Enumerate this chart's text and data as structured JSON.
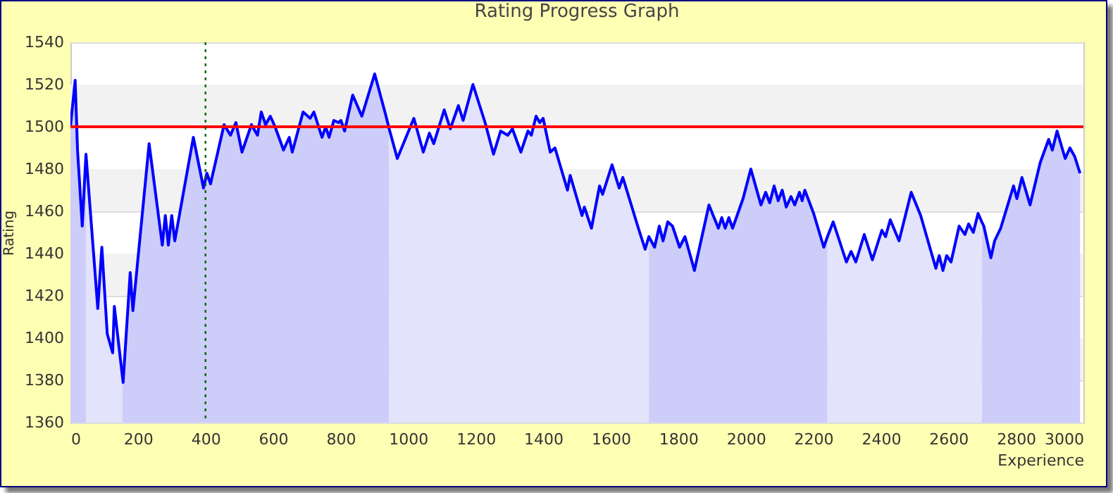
{
  "chart_data": {
    "type": "area",
    "title": "Rating Progress Graph",
    "xlabel": "Experience",
    "ylabel": "Rating",
    "xlim": [
      0,
      3000
    ],
    "xticks": [
      0,
      200,
      400,
      600,
      800,
      1000,
      1200,
      1400,
      1600,
      1800,
      2000,
      2200,
      2400,
      2600,
      2800,
      3000
    ],
    "ylim": [
      1360,
      1540
    ],
    "yticks": [
      1360,
      1380,
      1400,
      1420,
      1440,
      1460,
      1480,
      1500,
      1520,
      1540
    ],
    "grid": "y",
    "marker": "none",
    "x": [
      0,
      7,
      14,
      21,
      35,
      46,
      81,
      93,
      109,
      125,
      130,
      153,
      156,
      177,
      185,
      233,
      272,
      281,
      290,
      300,
      309,
      364,
      394,
      404,
      415,
      455,
      474,
      490,
      508,
      536,
      554,
      565,
      578,
      592,
      606,
      631,
      648,
      657,
      689,
      710,
      721,
      745,
      756,
      766,
      780,
      794,
      801,
      812,
      836,
      863,
      901,
      933,
      944,
      968,
      1017,
      1045,
      1063,
      1076,
      1107,
      1125,
      1149,
      1163,
      1192,
      1228,
      1253,
      1274,
      1295,
      1309,
      1334,
      1355,
      1365,
      1379,
      1390,
      1400,
      1421,
      1435,
      1472,
      1480,
      1515,
      1522,
      1543,
      1567,
      1576,
      1604,
      1625,
      1636,
      1682,
      1702,
      1713,
      1730,
      1744,
      1755,
      1769,
      1783,
      1804,
      1820,
      1848,
      1891,
      1919,
      1929,
      1939,
      1950,
      1961,
      1992,
      2015,
      2045,
      2059,
      2071,
      2084,
      2096,
      2108,
      2120,
      2134,
      2145,
      2159,
      2167,
      2175,
      2201,
      2231,
      2242,
      2259,
      2298,
      2312,
      2326,
      2351,
      2375,
      2403,
      2414,
      2428,
      2454,
      2490,
      2518,
      2563,
      2573,
      2584,
      2595,
      2608,
      2632,
      2649,
      2660,
      2674,
      2688,
      2699,
      2705,
      2726,
      2737,
      2755,
      2793,
      2803,
      2818,
      2842,
      2872,
      2897,
      2908,
      2922,
      2946,
      2960,
      2974,
      2990
    ],
    "series": [
      {
        "type": "area",
        "color": "#cdcdf9",
        "values": [
          1500,
          1511,
          1522,
          1489,
          1453,
          1487,
          null,
          null,
          null,
          null,
          null,
          1383,
          1379,
          1431,
          1413,
          1492,
          1444,
          1458,
          1444,
          1458,
          1446,
          1495,
          1471,
          1478,
          1473,
          1501,
          1496,
          1502,
          1488,
          1501,
          1496,
          1507,
          1501,
          1505,
          1500,
          1489,
          1495,
          1488,
          1507,
          1504,
          1507,
          1495,
          1500,
          1495,
          1503,
          1502,
          1503,
          1498,
          1515,
          1505,
          1525,
          1506,
          1499,
          null,
          null,
          null,
          null,
          null,
          null,
          null,
          null,
          null,
          null,
          null,
          null,
          null,
          null,
          null,
          null,
          null,
          null,
          null,
          null,
          null,
          null,
          null,
          null,
          null,
          null,
          null,
          null,
          null,
          null,
          null,
          null,
          null,
          null,
          null,
          1448,
          1443,
          1453,
          1446,
          1455,
          1453,
          1443,
          1448,
          1432,
          1463,
          1452,
          1457,
          1452,
          1457,
          1452,
          1466,
          1480,
          1463,
          1469,
          1464,
          1472,
          1465,
          1470,
          1462,
          1467,
          1463,
          1469,
          1465,
          1470,
          1459,
          1443,
          1448,
          null,
          null,
          null,
          null,
          null,
          null,
          null,
          null,
          null,
          null,
          null,
          null,
          null,
          null,
          null,
          null,
          null,
          null,
          null,
          null,
          null,
          null,
          1455,
          1453,
          1438,
          1446,
          1452,
          1472,
          1466,
          1476,
          1463,
          1483,
          1494,
          1489,
          1498,
          1485,
          1490,
          1486,
          1478
        ]
      },
      {
        "type": "area",
        "color": "#e3e3fb",
        "values": [
          null,
          null,
          null,
          null,
          null,
          1487,
          1414,
          1443,
          1402,
          1393,
          1415,
          1383,
          null,
          null,
          null,
          null,
          null,
          null,
          null,
          null,
          null,
          null,
          null,
          null,
          null,
          null,
          null,
          null,
          null,
          null,
          null,
          null,
          null,
          null,
          null,
          null,
          null,
          null,
          null,
          null,
          null,
          null,
          null,
          null,
          null,
          null,
          null,
          null,
          null,
          null,
          null,
          null,
          1499,
          1485,
          1504,
          1488,
          1497,
          1492,
          1508,
          1499,
          1510,
          1503,
          1520,
          1502,
          1487,
          1498,
          1496,
          1499,
          1488,
          1498,
          1496,
          1505,
          1502,
          1504,
          1488,
          1490,
          1470,
          1477,
          1458,
          1462,
          1452,
          1472,
          1468,
          1482,
          1471,
          1476,
          1452,
          1442,
          1448,
          null,
          null,
          null,
          null,
          null,
          null,
          null,
          null,
          null,
          null,
          null,
          null,
          null,
          null,
          null,
          null,
          null,
          null,
          null,
          null,
          null,
          null,
          null,
          null,
          null,
          null,
          null,
          null,
          null,
          null,
          1448,
          1455,
          1436,
          1441,
          1436,
          1449,
          1437,
          1451,
          1448,
          1456,
          1446,
          1469,
          1458,
          1433,
          1439,
          1432,
          1439,
          1436,
          1453,
          1449,
          1454,
          1450,
          1459,
          1455,
          null,
          null,
          null,
          null,
          null,
          null,
          null,
          null,
          null,
          null,
          null,
          null,
          null,
          null,
          null,
          null
        ]
      },
      {
        "type": "line",
        "color": "#0000ff",
        "values": [
          1500,
          1511,
          1522,
          1489,
          1453,
          1487,
          1414,
          1443,
          1402,
          1393,
          1415,
          1383,
          1379,
          1431,
          1413,
          1492,
          1444,
          1458,
          1444,
          1458,
          1446,
          1495,
          1471,
          1478,
          1473,
          1501,
          1496,
          1502,
          1488,
          1501,
          1496,
          1507,
          1501,
          1505,
          1500,
          1489,
          1495,
          1488,
          1507,
          1504,
          1507,
          1495,
          1500,
          1495,
          1503,
          1502,
          1503,
          1498,
          1515,
          1505,
          1525,
          1506,
          1499,
          1485,
          1504,
          1488,
          1497,
          1492,
          1508,
          1499,
          1510,
          1503,
          1520,
          1502,
          1487,
          1498,
          1496,
          1499,
          1488,
          1498,
          1496,
          1505,
          1502,
          1504,
          1488,
          1490,
          1470,
          1477,
          1458,
          1462,
          1452,
          1472,
          1468,
          1482,
          1471,
          1476,
          1452,
          1442,
          1448,
          1443,
          1453,
          1446,
          1455,
          1453,
          1443,
          1448,
          1432,
          1463,
          1452,
          1457,
          1452,
          1457,
          1452,
          1466,
          1480,
          1463,
          1469,
          1464,
          1472,
          1465,
          1470,
          1462,
          1467,
          1463,
          1469,
          1465,
          1470,
          1459,
          1443,
          1448,
          1455,
          1436,
          1441,
          1436,
          1449,
          1437,
          1451,
          1448,
          1456,
          1446,
          1469,
          1458,
          1433,
          1439,
          1432,
          1439,
          1436,
          1453,
          1449,
          1454,
          1450,
          1459,
          1455,
          1453,
          1438,
          1446,
          1452,
          1472,
          1466,
          1476,
          1463,
          1483,
          1494,
          1489,
          1498,
          1485,
          1490,
          1486,
          1478
        ]
      }
    ],
    "bands": [
      {
        "axis": "y",
        "from": 1380,
        "to": 1400,
        "color": "#f2f2f2"
      },
      {
        "axis": "y",
        "from": 1420,
        "to": 1440,
        "color": "#f2f2f2"
      },
      {
        "axis": "y",
        "from": 1460,
        "to": 1480,
        "color": "#f2f2f2"
      },
      {
        "axis": "y",
        "from": 1500,
        "to": 1520,
        "color": "#f2f2f2"
      }
    ],
    "ref_lines": [
      {
        "axis": "y",
        "value": 1500,
        "color": "#ff0000",
        "line_style": "solid"
      },
      {
        "axis": "x",
        "value": 400,
        "color": "#006400",
        "line_style": "dotted"
      }
    ]
  }
}
